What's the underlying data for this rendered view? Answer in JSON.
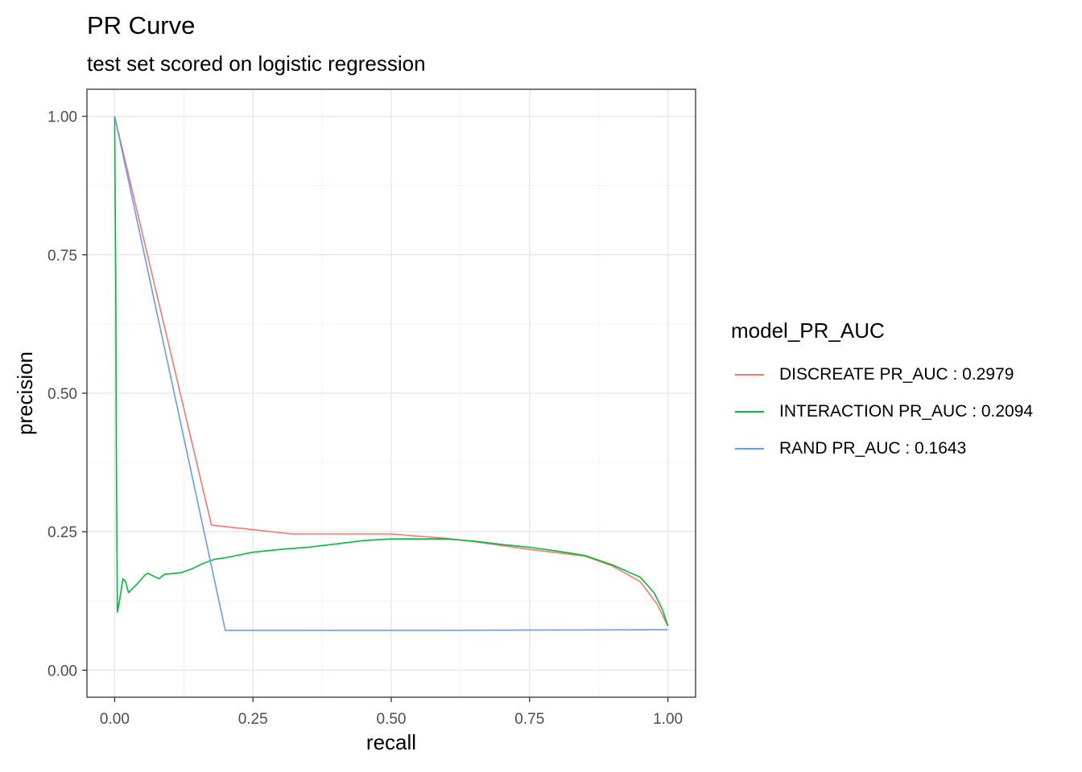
{
  "chart_data": {
    "type": "line",
    "title": "PR Curve",
    "subtitle": "test set scored on logistic regression",
    "xlabel": "recall",
    "ylabel": "precision",
    "xlim": [
      0,
      1
    ],
    "ylim": [
      0,
      1
    ],
    "x_ticks": [
      "0.00",
      "0.25",
      "0.50",
      "0.75",
      "1.00"
    ],
    "y_ticks": [
      "0.00",
      "0.25",
      "0.50",
      "0.75",
      "1.00"
    ],
    "grid": true,
    "legend": {
      "title": "model_PR_AUC",
      "position": "right"
    },
    "series": [
      {
        "name": "DISCREATE PR_AUC : 0.2979",
        "color": "#F8766D",
        "points": [
          [
            0,
            1
          ],
          [
            0.175,
            0.262
          ],
          [
            0.32,
            0.246
          ],
          [
            0.5,
            0.246
          ],
          [
            0.6,
            0.238
          ],
          [
            0.65,
            0.232
          ],
          [
            0.75,
            0.218
          ],
          [
            0.85,
            0.206
          ],
          [
            0.9,
            0.188
          ],
          [
            0.95,
            0.16
          ],
          [
            0.98,
            0.12
          ],
          [
            1.0,
            0.08
          ]
        ]
      },
      {
        "name": "INTERACTION PR_AUC : 0.2094",
        "color": "#00BA38",
        "points": [
          [
            0,
            1
          ],
          [
            0.002,
            0.7
          ],
          [
            0.003,
            0.4
          ],
          [
            0.005,
            0.105
          ],
          [
            0.008,
            0.12
          ],
          [
            0.012,
            0.145
          ],
          [
            0.015,
            0.165
          ],
          [
            0.02,
            0.16
          ],
          [
            0.025,
            0.14
          ],
          [
            0.04,
            0.155
          ],
          [
            0.055,
            0.172
          ],
          [
            0.06,
            0.175
          ],
          [
            0.07,
            0.17
          ],
          [
            0.08,
            0.165
          ],
          [
            0.09,
            0.173
          ],
          [
            0.12,
            0.176
          ],
          [
            0.14,
            0.183
          ],
          [
            0.16,
            0.193
          ],
          [
            0.18,
            0.2
          ],
          [
            0.2,
            0.203
          ],
          [
            0.25,
            0.213
          ],
          [
            0.3,
            0.218
          ],
          [
            0.35,
            0.222
          ],
          [
            0.4,
            0.228
          ],
          [
            0.45,
            0.234
          ],
          [
            0.5,
            0.237
          ],
          [
            0.55,
            0.237
          ],
          [
            0.6,
            0.237
          ],
          [
            0.65,
            0.233
          ],
          [
            0.7,
            0.227
          ],
          [
            0.75,
            0.222
          ],
          [
            0.8,
            0.215
          ],
          [
            0.85,
            0.207
          ],
          [
            0.9,
            0.19
          ],
          [
            0.95,
            0.168
          ],
          [
            0.975,
            0.14
          ],
          [
            0.99,
            0.11
          ],
          [
            1.0,
            0.08
          ]
        ]
      },
      {
        "name": "RAND PR_AUC : 0.1643",
        "color": "#619CFF",
        "points": [
          [
            0,
            1
          ],
          [
            0.2,
            0.072
          ],
          [
            0.6,
            0.072
          ],
          [
            1.0,
            0.073
          ]
        ]
      }
    ]
  }
}
